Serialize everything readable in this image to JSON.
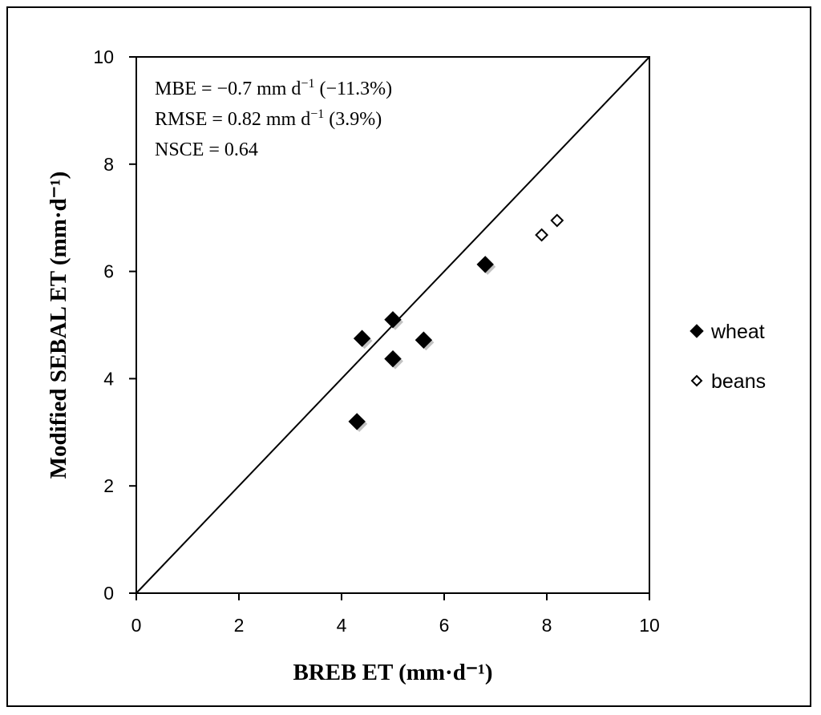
{
  "chart_data": {
    "type": "scatter",
    "title": "",
    "xlabel": "BREB ET (mm·d⁻¹)",
    "ylabel": "Modified SEBAL ET (mm·d⁻¹)",
    "xlim": [
      0,
      10
    ],
    "ylim": [
      0,
      10
    ],
    "xticks": [
      "0",
      "2",
      "4",
      "6",
      "8",
      "10"
    ],
    "yticks": [
      "0",
      "2",
      "4",
      "6",
      "8",
      "10"
    ],
    "grid": false,
    "legend_position": "right",
    "reference_line": {
      "name": "1:1 line",
      "from": [
        0,
        0
      ],
      "to": [
        10,
        10
      ]
    },
    "series": [
      {
        "name": "wheat",
        "marker": "filled-diamond",
        "color": "#000000",
        "points": [
          {
            "x": 4.3,
            "y": 3.2
          },
          {
            "x": 4.4,
            "y": 4.75
          },
          {
            "x": 5.0,
            "y": 5.1
          },
          {
            "x": 5.0,
            "y": 4.37
          },
          {
            "x": 5.6,
            "y": 4.72
          },
          {
            "x": 6.8,
            "y": 6.13
          }
        ]
      },
      {
        "name": "beans",
        "marker": "open-diamond",
        "color": "#000000",
        "points": [
          {
            "x": 7.9,
            "y": 6.68
          },
          {
            "x": 8.2,
            "y": 6.95
          }
        ]
      }
    ],
    "annotations": [
      {
        "main": "MBE = −0.7 mm d",
        "sup": "−1",
        "tail": " (−11.3%)"
      },
      {
        "main": "RMSE = 0.82 mm d",
        "sup": "−1",
        "tail": " (3.9%)"
      },
      {
        "main": "NSCE = 0.64",
        "sup": "",
        "tail": ""
      }
    ]
  }
}
